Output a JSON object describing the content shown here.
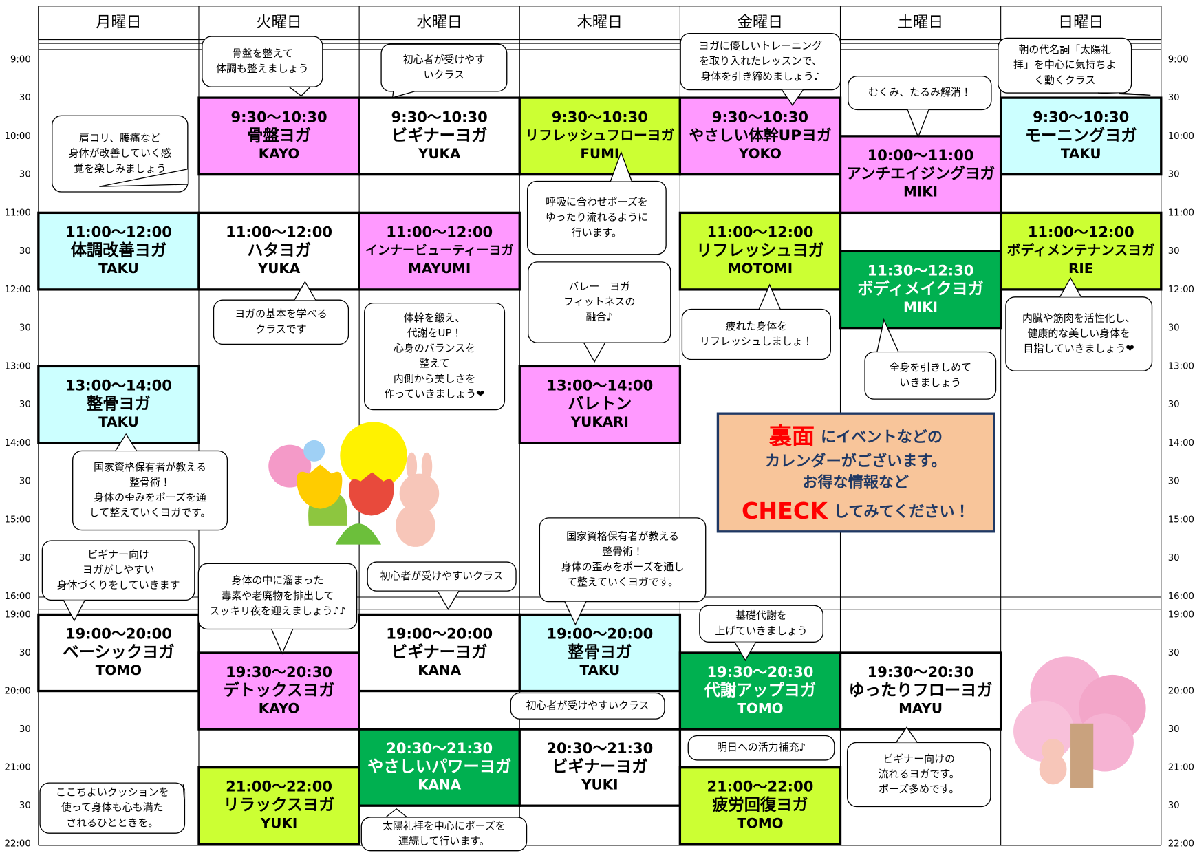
{
  "time_labels": {
    "day": [
      "9:00",
      "30",
      "10:00",
      "30",
      "11:00",
      "30",
      "12:00",
      "30",
      "13:00",
      "30",
      "14:00",
      "30",
      "15:00",
      "30",
      "16:00"
    ],
    "evening": [
      "19:00",
      "30",
      "20:00",
      "30",
      "21:00",
      "30",
      "22:00"
    ]
  },
  "days": [
    {
      "name": "月曜日",
      "classes": [
        {
          "time": "11:00〜12:00",
          "name": "体調改善ヨガ",
          "instructor": "TAKU",
          "color": "#ccffff"
        },
        {
          "time": "13:00〜14:00",
          "name": "整骨ヨガ",
          "instructor": "TAKU",
          "color": "#ccffff"
        },
        {
          "time": "19:00〜20:00",
          "name": "ベーシックヨガ",
          "instructor": "TOMO",
          "color": "#ffffff"
        }
      ]
    },
    {
      "name": "火曜日",
      "classes": [
        {
          "time": "9:30〜10:30",
          "name": "骨盤ヨガ",
          "instructor": "KAYO",
          "color": "#ff99ff"
        },
        {
          "time": "11:00〜12:00",
          "name": "ハタヨガ",
          "instructor": "YUKA",
          "color": "#ffffff"
        },
        {
          "time": "19:30〜20:30",
          "name": "デトックスヨガ",
          "instructor": "KAYO",
          "color": "#ff99ff"
        },
        {
          "time": "21:00〜22:00",
          "name": "リラックスヨガ",
          "instructor": "YUKI",
          "color": "#ccff33"
        }
      ]
    },
    {
      "name": "水曜日",
      "classes": [
        {
          "time": "9:30〜10:30",
          "name": "ビギナーヨガ",
          "instructor": "YUKA",
          "color": "#ffffff"
        },
        {
          "time": "11:00〜12:00",
          "name": "インナービューティーヨガ",
          "instructor": "MAYUMI",
          "color": "#ff99ff"
        },
        {
          "time": "19:00〜20:00",
          "name": "ビギナーヨガ",
          "instructor": "KANA",
          "color": "#ffffff"
        },
        {
          "time": "20:30〜21:30",
          "name": "やさしいパワーヨガ",
          "instructor": "KANA",
          "color": "#00b050"
        }
      ]
    },
    {
      "name": "木曜日",
      "classes": [
        {
          "time": "9:30〜10:30",
          "name": "リフレッシュフローヨガ",
          "instructor": "FUMI",
          "color": "#ccff33"
        },
        {
          "time": "13:00〜14:00",
          "name": "バレトン",
          "instructor": "YUKARI",
          "color": "#ff99ff"
        },
        {
          "time": "19:00〜20:00",
          "name": "整骨ヨガ",
          "instructor": "TAKU",
          "color": "#ccffff"
        },
        {
          "time": "20:30〜21:30",
          "name": "ビギナーヨガ",
          "instructor": "YUKI",
          "color": "#ffffff"
        }
      ]
    },
    {
      "name": "金曜日",
      "classes": [
        {
          "time": "9:30〜10:30",
          "name": "やさしい体幹UPヨガ",
          "instructor": "YOKO",
          "color": "#ff99ff"
        },
        {
          "time": "11:00〜12:00",
          "name": "リフレッシュヨガ",
          "instructor": "MOTOMI",
          "color": "#ccff33"
        },
        {
          "time": "19:30〜20:30",
          "name": "代謝アップヨガ",
          "instructor": "TOMO",
          "color": "#00b050"
        },
        {
          "time": "21:00〜22:00",
          "name": "疲労回復ヨガ",
          "instructor": "TOMO",
          "color": "#ccff33"
        }
      ]
    },
    {
      "name": "土曜日",
      "classes": [
        {
          "time": "10:00〜11:00",
          "name": "アンチエイジングヨガ",
          "instructor": "MIKI",
          "color": "#ff99ff"
        },
        {
          "time": "11:30〜12:30",
          "name": "ボディメイクヨガ",
          "instructor": "MIKI",
          "color": "#00b050"
        },
        {
          "time": "19:30〜20:30",
          "name": "ゆったりフローヨガ",
          "instructor": "MAYU",
          "color": "#ffffff"
        }
      ]
    },
    {
      "name": "日曜日",
      "classes": [
        {
          "time": "9:30〜10:30",
          "name": "モーニングヨガ",
          "instructor": "TAKU",
          "color": "#ccffff"
        },
        {
          "time": "11:00〜12:00",
          "name": "ボディメンテナンスヨガ",
          "instructor": "RIE",
          "color": "#ccff33"
        }
      ]
    }
  ],
  "notes": [
    {
      "lines": [
        "骨盤を整えて",
        "体調も整えましょう"
      ]
    },
    {
      "lines": [
        "初心者が受けやす",
        "いクラス"
      ]
    },
    {
      "lines": [
        "ヨガに優しいトレーニング",
        "を取り入れたレッスンで、",
        "身体を引き締めましょう♪"
      ]
    },
    {
      "lines": [
        "朝の代名詞「太陽礼",
        "拝」を中心に気持ちよ",
        "く動くクラス"
      ]
    },
    {
      "lines": [
        "むくみ、たるみ解消！"
      ]
    },
    {
      "lines": [
        "肩コリ、腰痛など",
        "身体が改善していく感",
        "覚を楽しみましょう"
      ]
    },
    {
      "lines": [
        "呼吸に合わせポーズを",
        "ゆったり流れるように",
        "行います。"
      ]
    },
    {
      "lines": [
        "ヨガの基本を学べる",
        "クラスです"
      ]
    },
    {
      "lines": [
        "体幹を鍛え、",
        "代謝をUP！",
        "心身のバランスを",
        "整えて",
        "内側から美しさを",
        "作っていきましょう❤"
      ]
    },
    {
      "lines": [
        "バレー　ヨガ",
        "フィットネスの",
        "融合♪"
      ]
    },
    {
      "lines": [
        "疲れた身体を",
        "リフレッシュしましょ！"
      ]
    },
    {
      "lines": [
        "全身を引きしめて",
        "いきましょう"
      ]
    },
    {
      "lines": [
        "内臓や筋肉を活性化し、",
        "健康的な美しい身体を",
        "目指していきましょう❤"
      ]
    },
    {
      "lines": [
        "国家資格保有者が教える",
        "整骨術！",
        "身体の歪みをポーズを通",
        "して整えていくヨガです。"
      ]
    },
    {
      "lines": [
        "国家資格保有者が教える",
        "整骨術！",
        "身体の歪みをポーズを通し",
        "て整えていくヨガです。"
      ]
    },
    {
      "lines": [
        "ビギナー向け",
        "ヨガがしやすい",
        "身体づくりをしていきます"
      ]
    },
    {
      "lines": [
        "身体の中に溜まった",
        "毒素や老廃物を排出して",
        "スッキリ夜を迎えましょう♪♪"
      ]
    },
    {
      "lines": [
        "初心者が受けやすいクラス"
      ]
    },
    {
      "lines": [
        "基礎代謝を",
        "上げていきましょう"
      ]
    },
    {
      "lines": [
        "初心者が受けやすいクラス"
      ]
    },
    {
      "lines": [
        "明日への活力補充♪"
      ]
    },
    {
      "lines": [
        "ビギナー向けの",
        "流れるヨガです。",
        "ポーズ多めです。"
      ]
    },
    {
      "lines": [
        "ここちよいクッションを",
        "使って身体も心も満た",
        "されるひとときを。"
      ]
    },
    {
      "lines": [
        "太陽礼拝を中心にポーズを",
        "連続して行います。"
      ]
    }
  ],
  "notice": {
    "emphasis1": "裏面",
    "line1": "にイベントなどの",
    "line2": "カレンダーがございます。",
    "line3": "お得な情報など",
    "emphasis2": "CHECK",
    "line4": "してみてください！"
  }
}
